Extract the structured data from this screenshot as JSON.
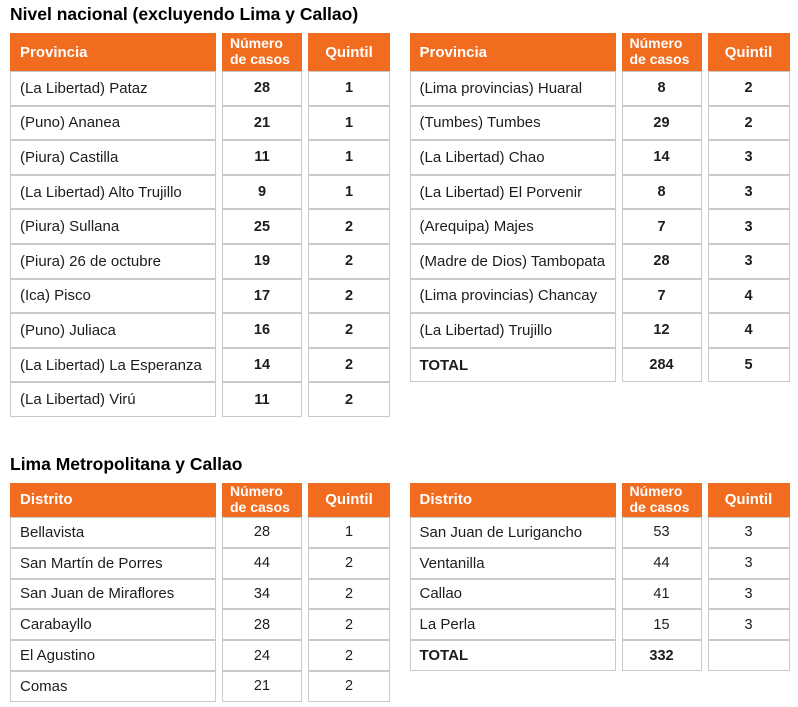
{
  "colors": {
    "accent": "#F26C1F",
    "header_text": "#FFFFFF",
    "body_text": "#1D1D1B",
    "title_text": "#000000",
    "border": "#C9C9C9"
  },
  "sections": [
    {
      "id": "national",
      "title": "Nivel nacional (excluyendo Lima y Callao)",
      "tables": [
        {
          "id": "national-left",
          "columns": [
            "Provincia",
            "Número de casos",
            "Quintil"
          ],
          "bold_values": true,
          "rows": [
            [
              "(La Libertad) Pataz",
              "28",
              "1"
            ],
            [
              "(Puno) Ananea",
              "21",
              "1"
            ],
            [
              "(Piura) Castilla",
              "11",
              "1"
            ],
            [
              "(La Libertad) Alto Trujillo",
              "9",
              "1"
            ],
            [
              "(Piura) Sullana",
              "25",
              "2"
            ],
            [
              "(Piura) 26 de octubre",
              "19",
              "2"
            ],
            [
              "(Ica) Pisco",
              "17",
              "2"
            ],
            [
              "(Puno) Juliaca",
              "16",
              "2"
            ],
            [
              "(La Libertad) La Esperanza",
              "14",
              "2"
            ],
            [
              "(La Libertad) Virú",
              "11",
              "2"
            ]
          ]
        },
        {
          "id": "national-right",
          "columns": [
            "Provincia",
            "Número de casos",
            "Quintil"
          ],
          "bold_values": true,
          "rows": [
            [
              "(Lima provincias) Huaral",
              "8",
              "2"
            ],
            [
              "(Tumbes) Tumbes",
              "29",
              "2"
            ],
            [
              "(La Libertad) Chao",
              "14",
              "3"
            ],
            [
              "(La Libertad) El Porvenir",
              "8",
              "3"
            ],
            [
              "(Arequipa) Majes",
              "7",
              "3"
            ],
            [
              "(Madre de Dios) Tambopata",
              "28",
              "3"
            ],
            [
              "(Lima provincias) Chancay",
              "7",
              "4"
            ],
            [
              "(La Libertad) Trujillo",
              "12",
              "4"
            ]
          ],
          "total": [
            "TOTAL",
            "284",
            "5"
          ]
        }
      ]
    },
    {
      "id": "lima",
      "title": "Lima Metropolitana y Callao",
      "tables": [
        {
          "id": "lima-left",
          "columns": [
            "Distrito",
            "Número de casos",
            "Quintil"
          ],
          "bold_values": false,
          "rows": [
            [
              "Bellavista",
              "28",
              "1"
            ],
            [
              "San Martín de Porres",
              "44",
              "2"
            ],
            [
              "San Juan de Miraflores",
              "34",
              "2"
            ],
            [
              "Carabayllo",
              "28",
              "2"
            ],
            [
              "El Agustino",
              "24",
              "2"
            ],
            [
              "Comas",
              "21",
              "2"
            ]
          ]
        },
        {
          "id": "lima-right",
          "columns": [
            "Distrito",
            "Número de casos",
            "Quintil"
          ],
          "bold_values": false,
          "rows": [
            [
              "San Juan de Lurigancho",
              "53",
              "3"
            ],
            [
              "Ventanilla",
              "44",
              "3"
            ],
            [
              "Callao",
              "41",
              "3"
            ],
            [
              "La Perla",
              "15",
              "3"
            ]
          ],
          "total": [
            "TOTAL",
            "332",
            ""
          ]
        }
      ]
    }
  ]
}
